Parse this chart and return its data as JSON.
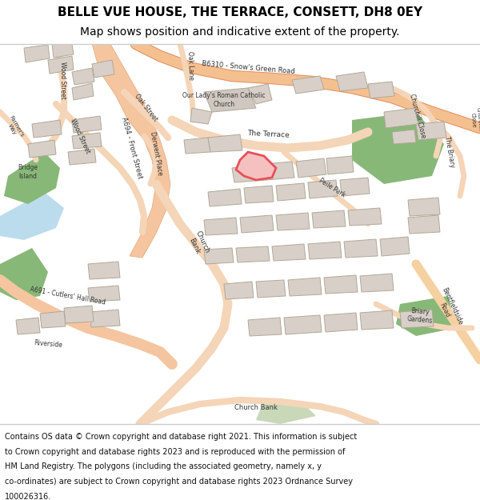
{
  "title_line1": "BELLE VUE HOUSE, THE TERRACE, CONSETT, DH8 0EY",
  "title_line2": "Map shows position and indicative extent of the property.",
  "title_fontsize": 11,
  "subtitle_fontsize": 10,
  "footer_fontsize": 7.0,
  "map_bg_color": "#f0ede8",
  "title_area_color": "#ffffff",
  "footer_area_color": "#ffffff",
  "border_color": "#cccccc",
  "highlight_color": "#e8505a",
  "highlight_fill": "#f5c0c0",
  "road_color_main": "#f5c5a0",
  "road_color_secondary": "#f5d5b8",
  "road_color_b6": "#f5c090",
  "water_color": "#aad4e8",
  "green_color": "#88b878",
  "building_color": "#d8d0c8",
  "building_outline": "#b0a898",
  "footer_lines": [
    "Contains OS data © Crown copyright and database right 2021. This information is subject",
    "to Crown copyright and database rights 2023 and is reproduced with the permission of",
    "HM Land Registry. The polygons (including the associated geometry, namely x, y",
    "co-ordinates) are subject to Crown copyright and database rights 2023 Ordnance Survey",
    "100026316."
  ]
}
